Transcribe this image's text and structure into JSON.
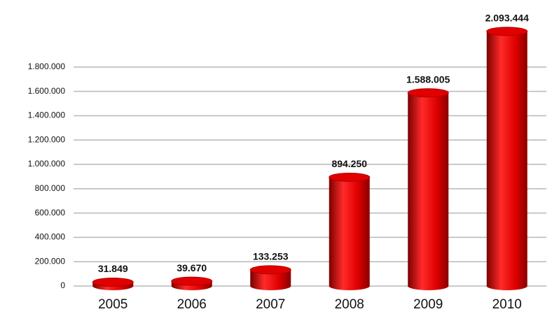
{
  "chart_data": {
    "type": "bar",
    "categories": [
      "2005",
      "2006",
      "2007",
      "2008",
      "2009",
      "2010"
    ],
    "values": [
      31849,
      39670,
      133253,
      894250,
      1588005,
      2093444
    ],
    "value_labels": [
      "31.849",
      "39.670",
      "133.253",
      "894.250",
      "1.588.005",
      "2.093.444"
    ],
    "color": "#e00000",
    "ylim": [
      0,
      2150000
    ],
    "yticks": [
      0,
      {
        "value": 200000,
        "label": "200.000"
      },
      {
        "value": 400000,
        "label": "400.000"
      },
      {
        "value": 600000,
        "label": "600.000"
      },
      {
        "value": 800000,
        "label": "800.000"
      },
      {
        "value": 1000000,
        "label": "1.000.000"
      },
      {
        "value": 1200000,
        "label": "1.200.000"
      },
      {
        "value": 1400000,
        "label": "1.400.000"
      },
      {
        "value": 1600000,
        "label": "1.600.000"
      },
      {
        "value": 1800000,
        "label": "1.800.000"
      }
    ],
    "grid": true
  }
}
